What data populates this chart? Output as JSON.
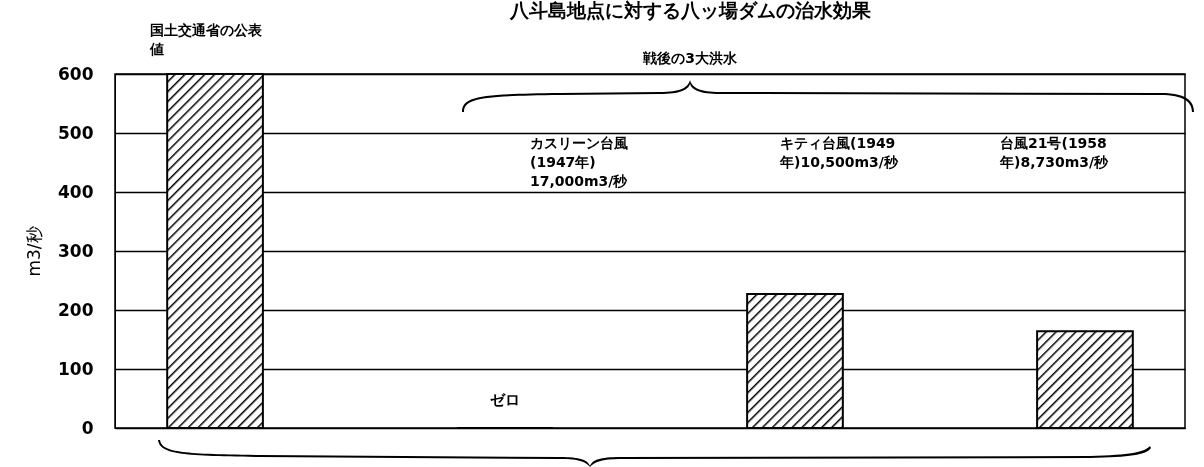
{
  "chart_data": {
    "type": "bar",
    "title": "八斗島地点に対する八ッ場ダムの治水効果",
    "ylabel": "m3/秒",
    "categories": [
      null,
      null,
      null,
      null
    ],
    "values": [
      600,
      0,
      227,
      164
    ],
    "value_labels": [
      null,
      "ゼロ",
      null,
      null
    ],
    "color": "#000000",
    "ylim": [
      0,
      600
    ],
    "yticks": [
      0,
      100,
      200,
      300,
      400,
      500,
      600
    ],
    "grid": "y",
    "tick_labels": "y",
    "annotations": [
      "国土交通省の公表値",
      "戦後の3大洪水",
      "カスリーン台風\n(1947年)\n17,000m3/秒",
      "キティ台風(1949\n年)10,500m3/秒",
      "台風21号(1958\n年)8,730m3/秒"
    ]
  }
}
